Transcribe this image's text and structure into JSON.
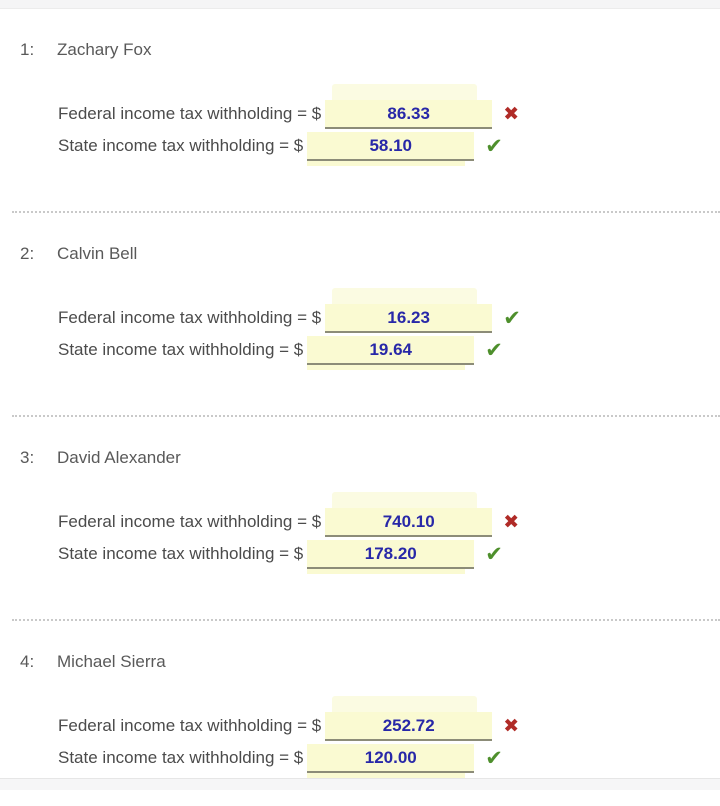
{
  "colors": {
    "field_background": "#fafad2",
    "field_underline": "#8c8c78",
    "value_text": "#2828a8",
    "label_text": "#4b4b4b",
    "correct_green": "#4e8f2c",
    "incorrect_red": "#b02b27",
    "separator_dots": "#c9c9c9",
    "strip_gray": "#f5f5f6"
  },
  "field_labels": {
    "federal": "Federal income tax withholding = $",
    "state": "State income tax withholding = $"
  },
  "questions": [
    {
      "number": "1:",
      "name": "Zachary Fox",
      "federal": {
        "value": "86.33",
        "status": "incorrect",
        "mark": "✖"
      },
      "state": {
        "value": "58.10",
        "status": "correct",
        "mark": "✔"
      }
    },
    {
      "number": "2:",
      "name": "Calvin Bell",
      "federal": {
        "value": "16.23",
        "status": "correct",
        "mark": "✔"
      },
      "state": {
        "value": "19.64",
        "status": "correct",
        "mark": "✔"
      }
    },
    {
      "number": "3:",
      "name": "David Alexander",
      "federal": {
        "value": "740.10",
        "status": "incorrect",
        "mark": "✖"
      },
      "state": {
        "value": "178.20",
        "status": "correct",
        "mark": "✔"
      }
    },
    {
      "number": "4:",
      "name": "Michael Sierra",
      "federal": {
        "value": "252.72",
        "status": "incorrect",
        "mark": "✖"
      },
      "state": {
        "value": "120.00",
        "status": "correct",
        "mark": "✔"
      }
    }
  ]
}
